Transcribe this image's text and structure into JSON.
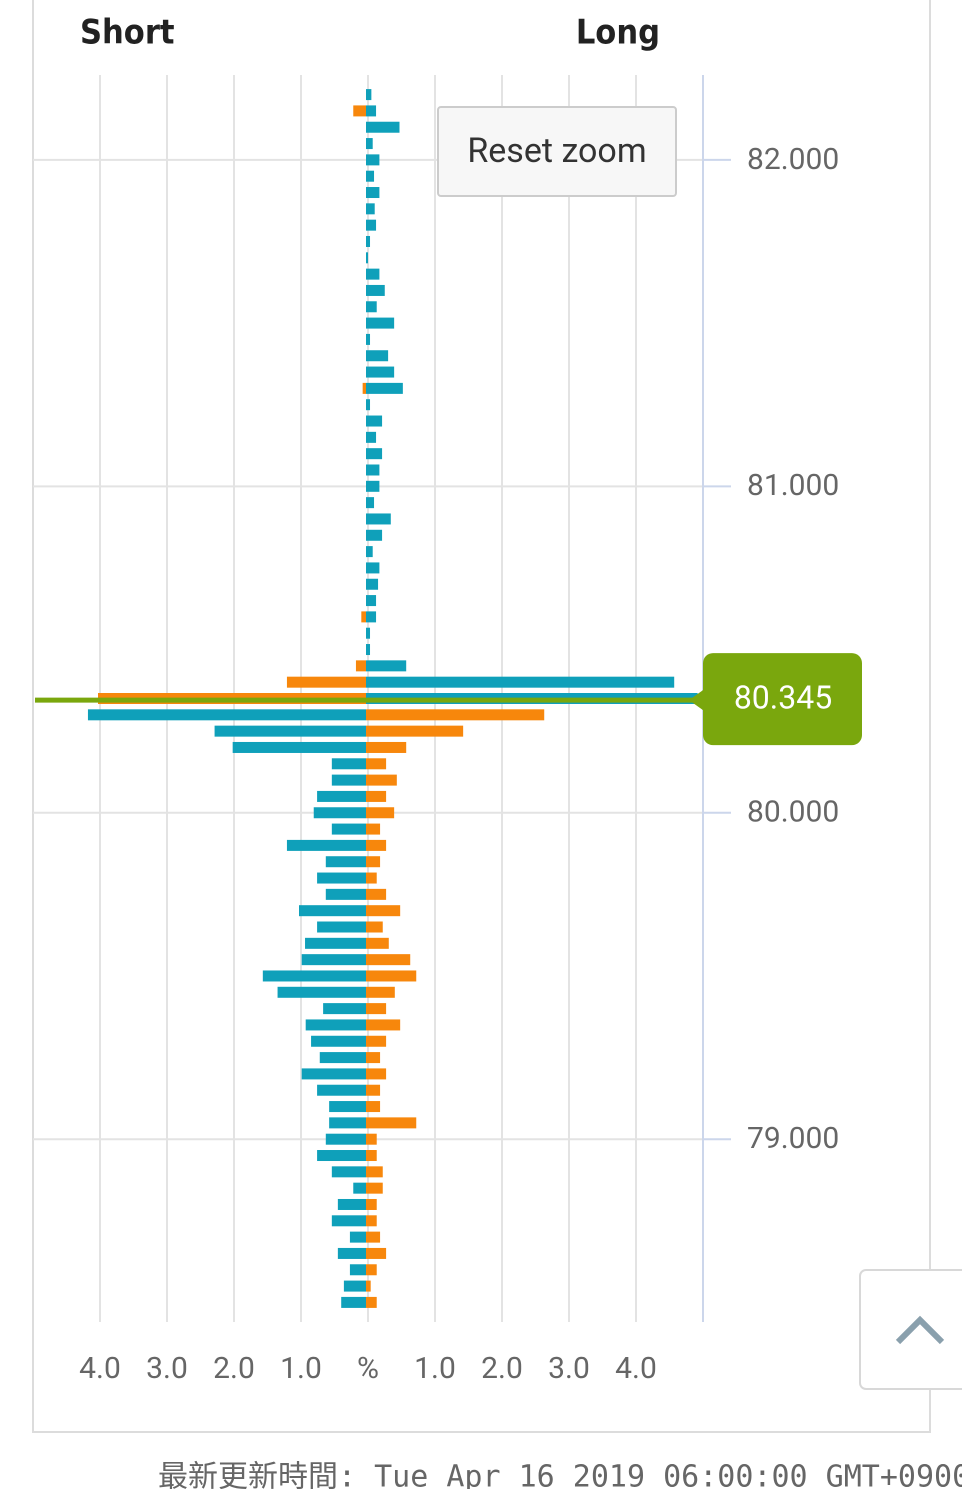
{
  "chart_data": {
    "type": "butterfly_bar",
    "series": [
      {
        "name": "Short",
        "side": "left",
        "colors": {
          "above": "#f7870c",
          "below": "#0fa0ba"
        },
        "values": [
          0,
          0.19,
          0,
          0,
          0,
          0,
          0,
          0,
          0,
          0,
          0,
          0,
          0,
          0,
          0,
          0,
          0,
          0,
          0.05,
          0,
          0,
          0,
          0,
          0,
          0,
          0,
          0,
          0,
          0,
          0,
          0,
          0,
          0.07,
          0,
          0,
          0.15,
          1.18,
          4.0,
          4.15,
          2.26,
          1.99,
          0.51,
          0.51,
          0.73,
          0.78,
          0.51,
          1.18,
          0.6,
          0.73,
          0.6,
          1.0,
          0.73,
          0.91,
          0.96,
          1.54,
          1.32,
          0.64,
          0.9,
          0.82,
          0.69,
          0.96,
          0.73,
          0.55,
          0.55,
          0.6,
          0.73,
          0.51,
          0.19,
          0.42,
          0.51,
          0.24,
          0.42,
          0.24,
          0.33,
          0.37
        ]
      },
      {
        "name": "Long",
        "side": "right",
        "colors": {
          "above": "#0fa0ba",
          "below": "#f7870c"
        },
        "values": [
          0.08,
          0.15,
          0.5,
          0.1,
          0.2,
          0.12,
          0.2,
          0.13,
          0.15,
          0.06,
          0.03,
          0.2,
          0.28,
          0.16,
          0.42,
          0.06,
          0.33,
          0.42,
          0.55,
          0.06,
          0.24,
          0.15,
          0.24,
          0.2,
          0.2,
          0.12,
          0.37,
          0.24,
          0.1,
          0.2,
          0.18,
          0.15,
          0.15,
          0.06,
          0.06,
          0.6,
          4.6,
          4.95,
          2.66,
          1.45,
          0.6,
          0.3,
          0.46,
          0.3,
          0.42,
          0.21,
          0.3,
          0.21,
          0.16,
          0.3,
          0.51,
          0.25,
          0.34,
          0.66,
          0.75,
          0.43,
          0.3,
          0.51,
          0.3,
          0.21,
          0.3,
          0.21,
          0.21,
          0.75,
          0.16,
          0.16,
          0.25,
          0.25,
          0.16,
          0.16,
          0.21,
          0.3,
          0.16,
          0.07,
          0.16
        ]
      }
    ],
    "y": [
      82.2,
      82.15,
      82.1,
      82.05,
      82,
      81.95,
      81.9,
      81.85,
      81.8,
      81.75,
      81.7,
      81.65,
      81.6,
      81.55,
      81.5,
      81.45,
      81.4,
      81.35,
      81.3,
      81.25,
      81.2,
      81.15,
      81.1,
      81.05,
      81,
      80.95,
      80.9,
      80.85,
      80.8,
      80.75,
      80.7,
      80.65,
      80.6,
      80.55,
      80.5,
      80.45,
      80.4,
      80.35,
      80.3,
      80.25,
      80.2,
      80.15,
      80.1,
      80.05,
      80,
      79.95,
      79.9,
      79.85,
      79.8,
      79.75,
      79.7,
      79.65,
      79.6,
      79.55,
      79.5,
      79.45,
      79.4,
      79.35,
      79.3,
      79.25,
      79.2,
      79.15,
      79.1,
      79.05,
      79,
      78.95,
      78.9,
      78.85,
      78.8,
      78.75,
      78.7,
      78.65,
      78.6,
      78.55,
      78.5
    ],
    "xlim": [
      0,
      5
    ],
    "xticks": [
      {
        "value": 1,
        "label": "1.0"
      },
      {
        "value": 2,
        "label": "2.0"
      },
      {
        "value": 3,
        "label": "3.0"
      },
      {
        "value": 4,
        "label": "4.0"
      }
    ],
    "x_label": "%",
    "ylim": [
      78.44,
      82.26
    ],
    "yticks": [
      {
        "value": 82,
        "label": "82.000"
      },
      {
        "value": 81,
        "label": "81.000"
      },
      {
        "value": 80,
        "label": "80.000"
      },
      {
        "value": 79,
        "label": "79.000"
      }
    ],
    "current_price": 80.345,
    "current_color": "#7aa70d",
    "grid": true
  },
  "controls": {
    "reset_zoom": "Reset zoom"
  },
  "footer": "最新更新時間: Tue Apr 16 2019 06:00:00 GMT+0900"
}
